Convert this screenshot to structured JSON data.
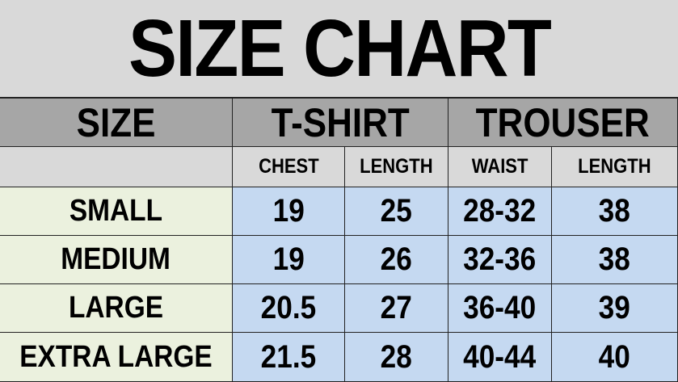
{
  "title": "SIZE CHART",
  "header": {
    "size": "SIZE",
    "tshirt": "T-SHIRT",
    "trouser": "TROUSER"
  },
  "subheader": [
    "CHEST",
    "LENGTH",
    "WAIST",
    "LENGTH"
  ],
  "rows": [
    {
      "size": "SMALL",
      "chest": "19",
      "tlength": "25",
      "waist": "28-32",
      "length": "38"
    },
    {
      "size": "MEDIUM",
      "chest": "19",
      "tlength": "26",
      "waist": "32-36",
      "length": "38"
    },
    {
      "size": "LARGE",
      "chest": "20.5",
      "tlength": "27",
      "waist": "36-40",
      "length": "39"
    },
    {
      "size": "EXTRA LARGE",
      "chest": "21.5",
      "tlength": "28",
      "waist": "40-44",
      "length": "40"
    }
  ],
  "colors": {
    "title_bg": "#d9d9d9",
    "header_bg": "#a6a6a6",
    "size_col_bg": "#ebf1de",
    "value_bg": "#c5d9f1"
  }
}
